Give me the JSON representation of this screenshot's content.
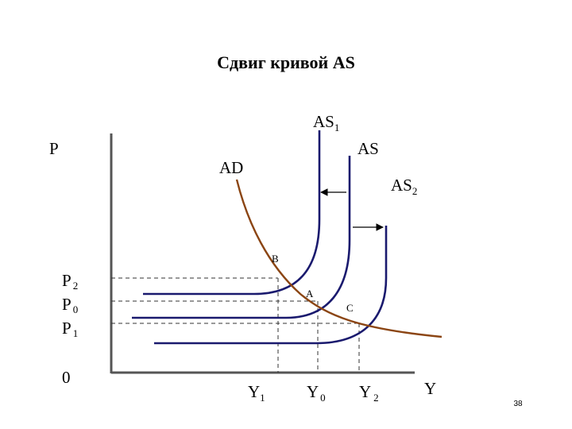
{
  "title": "Сдвиг кривой AS",
  "axes": {
    "y_label": "P",
    "x_label": "Y",
    "origin_label": "0"
  },
  "curves": {
    "as": "AS",
    "as1": {
      "main": "AS",
      "sub": "1"
    },
    "as2": {
      "main": "AS",
      "sub": "2"
    },
    "ad": "AD"
  },
  "price_levels": [
    {
      "main": "P",
      "sub": "2"
    },
    {
      "main": "P",
      "sub": "0"
    },
    {
      "main": "P",
      "sub": "1"
    }
  ],
  "output_levels": [
    {
      "main": "Y",
      "sub": "1"
    },
    {
      "main": "Y",
      "sub": "0"
    },
    {
      "main": "Y",
      "sub": "2"
    }
  ],
  "points": {
    "b": "B",
    "a": "A",
    "c": "C"
  },
  "page_number": "38",
  "colors": {
    "as_curves": "#1a1a6e",
    "ad_curve": "#8b4513",
    "axes": "#555555"
  }
}
